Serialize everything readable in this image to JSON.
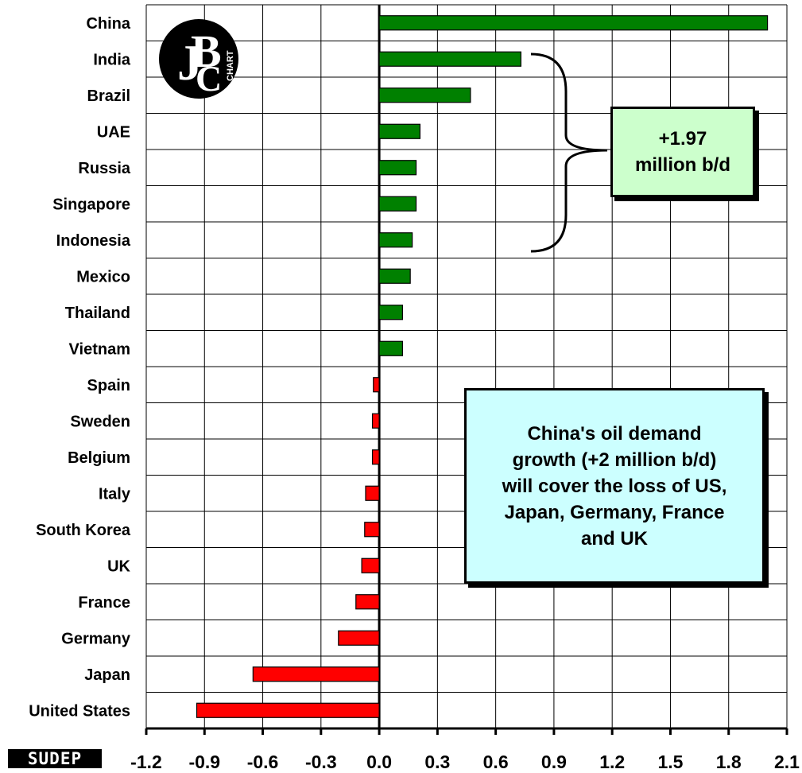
{
  "chart_data": {
    "type": "bar",
    "orientation": "horizontal",
    "categories": [
      "China",
      "India",
      "Brazil",
      "UAE",
      "Russia",
      "Singapore",
      "Indonesia",
      "Mexico",
      "Thailand",
      "Vietnam",
      "Spain",
      "Sweden",
      "Belgium",
      "Italy",
      "South Korea",
      "UK",
      "France",
      "Germany",
      "Japan",
      "United States"
    ],
    "values": [
      2.0,
      0.73,
      0.47,
      0.21,
      0.19,
      0.19,
      0.17,
      0.16,
      0.12,
      0.12,
      -0.03,
      -0.035,
      -0.035,
      -0.07,
      -0.075,
      -0.09,
      -0.12,
      -0.21,
      -0.65,
      -0.94
    ],
    "xlim": [
      -1.2,
      2.1
    ],
    "xticks": [
      "-1.2",
      "-0.9",
      "-0.6",
      "-0.3",
      "0.0",
      "0.3",
      "0.6",
      "0.9",
      "1.2",
      "1.5",
      "1.8",
      "2.1"
    ],
    "grid": true,
    "positive_color": "#008000",
    "negative_color": "#ff0000",
    "annotations": [
      {
        "name": "sum-box",
        "text": "+1.97\nmillion b/d"
      },
      {
        "name": "note-box",
        "text": "China's oil demand\ngrowth (+2 million b/d)\nwill cover the loss of US,\nJapan, Germany, France\nand UK"
      }
    ]
  },
  "logo": {
    "name": "bc-chart-logo",
    "text": "CHART"
  },
  "credit": {
    "text": "SUDEP"
  }
}
